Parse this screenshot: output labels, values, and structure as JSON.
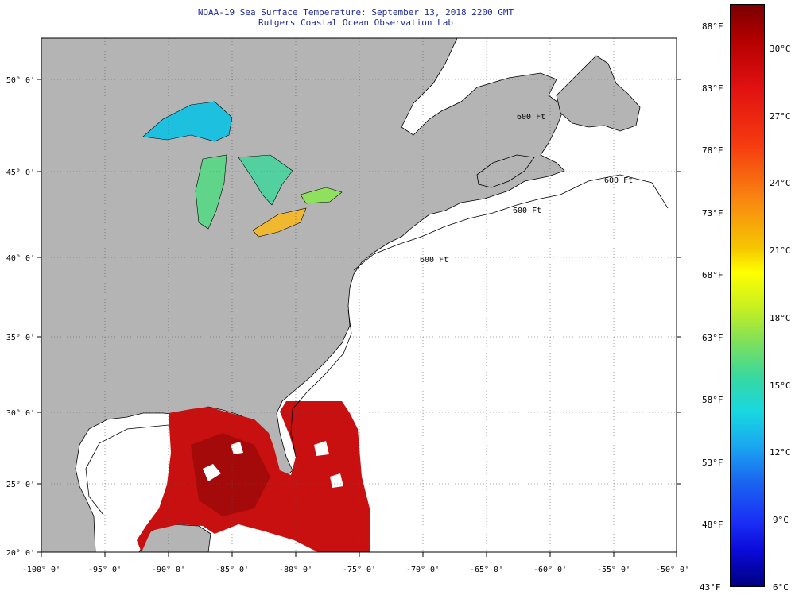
{
  "header": {
    "title": "NOAA-19 Sea Surface Temperature:  September 13, 2018 2200 GMT",
    "subtitle": "Rutgers Coastal Ocean Observation Lab"
  },
  "axes": {
    "lon_labels": [
      "-100° 0'",
      "-95° 0'",
      "-90° 0'",
      "-85° 0'",
      "-80° 0'",
      "-75° 0'",
      "-70° 0'",
      "-65° 0'",
      "-60° 0'",
      "-55° 0'",
      "-50° 0'"
    ],
    "lat_labels": [
      "50° 0'",
      "45° 0'",
      "40° 0'",
      "35° 0'",
      "30° 0'",
      "25° 0'",
      "20° 0'"
    ]
  },
  "contour_labels": [
    "600 Ft",
    "600 Ft",
    "600 Ft",
    "600 Ft"
  ],
  "colorbar": {
    "fahrenheit_labels": [
      "88°F",
      "83°F",
      "78°F",
      "73°F",
      "68°F",
      "63°F",
      "58°F",
      "53°F",
      "48°F",
      "43°F"
    ],
    "celsius_labels": [
      "30°C",
      "27°C",
      "24°C",
      "21°C",
      "18°C",
      "15°C",
      "12°C",
      "9°C",
      "6°C"
    ]
  },
  "colors": {
    "land": "#b4b4b4",
    "ocean_nodata": "#ffffff",
    "warm_water": "#c81010",
    "lake_superior": "#1ec0e0",
    "lake_michigan": "#5ed08a",
    "lake_erie": "#f0b830",
    "title_text": "#1e2a9a"
  }
}
